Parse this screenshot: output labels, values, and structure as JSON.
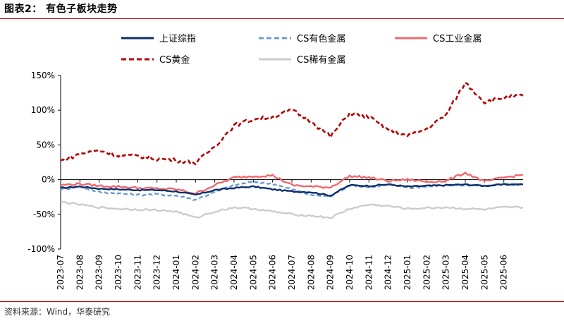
{
  "figure": {
    "title": "图表2：  有色子板块走势",
    "source": "资料来源：Wind，华泰研究"
  },
  "chart_data": {
    "type": "line",
    "title": "",
    "xlabel": "",
    "ylabel": "",
    "ylim": [
      -100,
      150
    ],
    "y_ticks": [
      -100,
      -50,
      0,
      50,
      100,
      150
    ],
    "y_tick_labels": [
      "-100%",
      "-50%",
      "0%",
      "50%",
      "100%",
      "150%"
    ],
    "x_ticks": [
      "2023-07",
      "2023-08",
      "2023-09",
      "2023-10",
      "2023-11",
      "2023-12",
      "2024-01",
      "2024-02",
      "2024-03",
      "2024-04",
      "2024-05",
      "2024-06",
      "2024-07",
      "2024-08",
      "2024-09",
      "2024-10",
      "2024-11",
      "2024-12",
      "2025-01",
      "2025-02",
      "2025-03",
      "2025-04",
      "2025-05",
      "2025-06"
    ],
    "grid": false,
    "legend": "top",
    "x": [
      "2023-07",
      "2023-08",
      "2023-09",
      "2023-10",
      "2023-11",
      "2023-12",
      "2024-01",
      "2024-02",
      "2024-03",
      "2024-04",
      "2024-05",
      "2024-06",
      "2024-07",
      "2024-08",
      "2024-09",
      "2024-10",
      "2024-11",
      "2024-12",
      "2025-01",
      "2025-02",
      "2025-03",
      "2025-04",
      "2025-05",
      "2025-06",
      "2025-07"
    ],
    "series": [
      {
        "name": "上证综指",
        "color": "#0b2f6b",
        "dash": "solid",
        "values": [
          -12,
          -10,
          -13,
          -14,
          -15,
          -15,
          -17,
          -22,
          -15,
          -12,
          -10,
          -14,
          -17,
          -18,
          -23,
          -8,
          -9,
          -7,
          -10,
          -9,
          -8,
          -7,
          -9,
          -7,
          -7
        ]
      },
      {
        "name": "CS有色金属",
        "color": "#6b9bd3",
        "dash": "dash",
        "values": [
          -14,
          -10,
          -18,
          -20,
          -22,
          -21,
          -23,
          -29,
          -18,
          -8,
          -3,
          -6,
          -14,
          -22,
          -24,
          -8,
          -11,
          -7,
          -12,
          -10,
          -8,
          -8,
          -9,
          -6,
          -6
        ]
      },
      {
        "name": "CS工业金属",
        "color": "#f0686d",
        "dash": "solid",
        "values": [
          -8,
          -6,
          -9,
          -10,
          -12,
          -13,
          -14,
          -20,
          -8,
          3,
          5,
          6,
          -8,
          -10,
          -11,
          5,
          3,
          -2,
          0,
          -3,
          -2,
          10,
          -3,
          3,
          7
        ]
      },
      {
        "name": "CS黄金",
        "color": "#b30000",
        "dash": "dash",
        "values": [
          27,
          37,
          42,
          35,
          34,
          30,
          28,
          24,
          48,
          78,
          87,
          90,
          100,
          84,
          62,
          96,
          90,
          72,
          63,
          73,
          93,
          140,
          112,
          118,
          121
        ]
      },
      {
        "name": "CS稀有金属",
        "color": "#cccccc",
        "dash": "solid",
        "values": [
          -32,
          -36,
          -40,
          -42,
          -43,
          -44,
          -46,
          -55,
          -46,
          -40,
          -42,
          -46,
          -50,
          -52,
          -55,
          -42,
          -36,
          -38,
          -42,
          -41,
          -40,
          -42,
          -43,
          -40,
          -40
        ]
      }
    ]
  }
}
